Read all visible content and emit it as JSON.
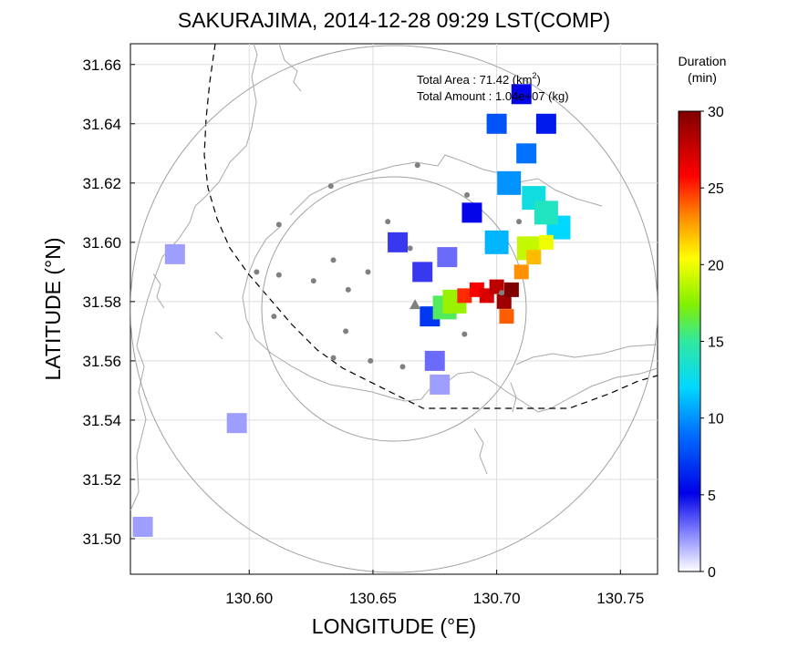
{
  "chart_data": {
    "type": "heatmap",
    "title": "SAKURAJIMA, 2014-12-28 09:29 LST(COMP)",
    "xlabel": "LONGITUDE (°E)",
    "ylabel": "LATITUDE (°N)",
    "xlim": [
      130.552,
      130.765
    ],
    "ylim": [
      31.488,
      31.667
    ],
    "xticks": [
      "130.60",
      "130.65",
      "130.70",
      "130.75"
    ],
    "yticks": [
      "31.50",
      "31.52",
      "31.54",
      "31.56",
      "31.58",
      "31.60",
      "31.62",
      "31.64",
      "31.66"
    ],
    "grid": true,
    "colorbar": {
      "label_line1": "Duration",
      "label_line2": "(min)",
      "range": [
        0,
        30
      ],
      "ticks": [
        "0",
        "5",
        "10",
        "15",
        "20",
        "25",
        "30"
      ]
    },
    "annotations": {
      "area_prefix": "Total Area   : 71.42 (km",
      "area_sup": "2",
      "area_suffix": ")",
      "amount": "Total Amount : 1.04e+07 (kg)"
    },
    "vent": {
      "lon": 130.667,
      "lat": 31.579
    },
    "range_circles_km": [
      5.5,
      10.5
    ],
    "stations": [
      [
        130.668,
        31.626
      ],
      [
        130.633,
        31.619
      ],
      [
        130.688,
        31.616
      ],
      [
        130.656,
        31.607
      ],
      [
        130.612,
        31.606
      ],
      [
        130.665,
        31.598
      ],
      [
        130.709,
        31.607
      ],
      [
        130.634,
        31.594
      ],
      [
        130.603,
        31.59
      ],
      [
        130.612,
        31.589
      ],
      [
        130.648,
        31.59
      ],
      [
        130.626,
        31.587
      ],
      [
        130.64,
        31.584
      ],
      [
        130.61,
        31.575
      ],
      [
        130.639,
        31.57
      ],
      [
        130.634,
        31.561
      ],
      [
        130.649,
        31.56
      ],
      [
        130.687,
        31.569
      ],
      [
        130.662,
        31.558
      ],
      [
        130.702,
        31.583
      ]
    ],
    "deposit_cells_minutes": [
      [
        130.706,
        31.584,
        30
      ],
      [
        130.703,
        31.58,
        29
      ],
      [
        130.7,
        31.585,
        28
      ],
      [
        130.696,
        31.582,
        27
      ],
      [
        130.692,
        31.584,
        26
      ],
      [
        130.687,
        31.582,
        25
      ],
      [
        130.704,
        31.575,
        24
      ],
      [
        130.71,
        31.59,
        23
      ],
      [
        130.715,
        31.595,
        22
      ],
      [
        130.72,
        31.6,
        20
      ],
      [
        130.713,
        31.598,
        19
      ],
      [
        130.683,
        31.58,
        18
      ],
      [
        130.679,
        31.578,
        16
      ],
      [
        130.72,
        31.61,
        14
      ],
      [
        130.715,
        31.615,
        13
      ],
      [
        130.725,
        31.605,
        12
      ],
      [
        130.7,
        31.6,
        11
      ],
      [
        130.705,
        31.62,
        10
      ],
      [
        130.712,
        31.63,
        9
      ],
      [
        130.7,
        31.64,
        8
      ],
      [
        130.673,
        31.575,
        7
      ],
      [
        130.72,
        31.64,
        6
      ],
      [
        130.71,
        31.65,
        5
      ],
      [
        130.69,
        31.61,
        5
      ],
      [
        130.67,
        31.59,
        4
      ],
      [
        130.66,
        31.6,
        4
      ],
      [
        130.68,
        31.595,
        3
      ],
      [
        130.675,
        31.56,
        3
      ],
      [
        130.677,
        31.552,
        2
      ],
      [
        130.57,
        31.596,
        2
      ],
      [
        130.595,
        31.539,
        2
      ],
      [
        130.557,
        31.504,
        2
      ]
    ]
  }
}
